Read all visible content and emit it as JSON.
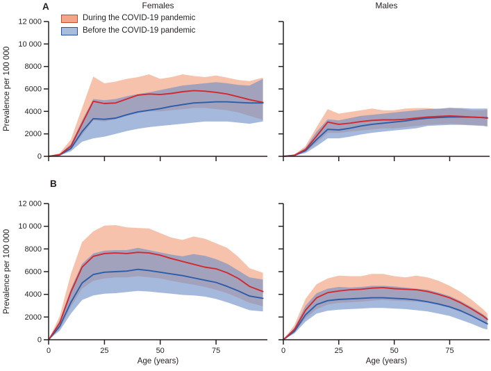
{
  "figure": {
    "panel_a_label": "A",
    "panel_b_label": "B",
    "col_titles": [
      "Females",
      "Males"
    ],
    "y_axis_title": "Prevalence per 100 000",
    "x_axis_title": "Age (years)",
    "legend": [
      {
        "label": "During the COVID-19 pandemic",
        "fill": "#f2a589",
        "border": "#bf4b2e"
      },
      {
        "label": "Before the COVID-19 pandemic",
        "fill": "#a8bcdc",
        "border": "#2c4f9e"
      }
    ]
  },
  "chart_data": {
    "type": "line",
    "title": "",
    "xlabel": "Age (years)",
    "ylabel": "Prevalence per 100 000",
    "ylim": [
      0,
      12000
    ],
    "y_ticks": [
      0,
      2000,
      4000,
      6000,
      8000,
      10000,
      12000
    ],
    "y_tick_labels": [
      "0",
      "2000",
      "4000",
      "6000",
      "8000",
      "10 000",
      "12 000"
    ],
    "x_ticks": [
      0,
      25,
      50,
      75
    ],
    "x_tick_labels": [
      "0",
      "25",
      "50",
      "75"
    ],
    "grid": false,
    "legend_position": "top-left inside panel A Females",
    "colors": {
      "during_line": "#d2292e",
      "during_fill": "#ef8f66",
      "before_line": "#2b5da9",
      "before_fill": "#6e8ec6"
    },
    "panels": [
      {
        "id": "a-females",
        "panel": "A",
        "group": "Females",
        "xmax": 98,
        "ages": [
          0,
          5,
          10,
          15,
          20,
          25,
          30,
          35,
          40,
          45,
          50,
          55,
          60,
          65,
          70,
          75,
          80,
          85,
          90,
          96
        ],
        "series": [
          {
            "name": "During the COVID-19 pandemic",
            "mean": [
              0,
              150,
              900,
              2900,
              4900,
              4700,
              4750,
              5100,
              5450,
              5550,
              5500,
              5600,
              5750,
              5850,
              5800,
              5700,
              5550,
              5300,
              5050,
              4800
            ],
            "upper": [
              0,
              300,
              1500,
              4300,
              7100,
              6500,
              6650,
              6900,
              7050,
              7300,
              6900,
              7050,
              7300,
              7150,
              7050,
              7200,
              7000,
              6800,
              6700,
              7000
            ],
            "lower": [
              0,
              100,
              600,
              1900,
              3200,
              3100,
              3300,
              3600,
              3850,
              4000,
              4000,
              4100,
              4200,
              4300,
              4300,
              4200,
              4100,
              3900,
              3600,
              3250
            ]
          },
          {
            "name": "Before the COVID-19 pandemic",
            "mean": [
              0,
              120,
              700,
              2200,
              3350,
              3300,
              3400,
              3700,
              3950,
              4100,
              4250,
              4450,
              4600,
              4750,
              4800,
              4850,
              4850,
              4800,
              4750,
              4750
            ],
            "upper": [
              0,
              200,
              1100,
              3200,
              5100,
              5000,
              5100,
              5350,
              5550,
              5700,
              5900,
              6100,
              6300,
              6400,
              6500,
              6600,
              6500,
              6350,
              6300,
              6900
            ],
            "lower": [
              0,
              80,
              450,
              1300,
              1600,
              1750,
              2000,
              2250,
              2450,
              2600,
              2700,
              2800,
              2900,
              3000,
              3100,
              3100,
              3100,
              3000,
              2900,
              3100
            ]
          }
        ]
      },
      {
        "id": "a-males",
        "panel": "A",
        "group": "Males",
        "xmax": 93,
        "ages": [
          0,
          5,
          10,
          15,
          20,
          25,
          30,
          35,
          40,
          45,
          50,
          55,
          60,
          65,
          70,
          75,
          80,
          85,
          90,
          92
        ],
        "series": [
          {
            "name": "During the COVID-19 pandemic",
            "mean": [
              0,
              100,
              600,
              1800,
              3050,
              2850,
              2950,
              3100,
              3200,
              3250,
              3250,
              3300,
              3400,
              3500,
              3550,
              3600,
              3550,
              3500,
              3450,
              3400
            ],
            "upper": [
              0,
              180,
              900,
              2600,
              4200,
              3800,
              3950,
              4100,
              4250,
              4100,
              4100,
              4250,
              4300,
              4300,
              4200,
              4350,
              4250,
              4100,
              4100,
              4150
            ],
            "lower": [
              0,
              60,
              400,
              1200,
              2100,
              2100,
              2200,
              2300,
              2400,
              2500,
              2500,
              2600,
              2700,
              2800,
              2850,
              2900,
              2850,
              2800,
              2750,
              2700
            ]
          },
          {
            "name": "Before the COVID-19 pandemic",
            "mean": [
              0,
              80,
              500,
              1500,
              2400,
              2350,
              2500,
              2700,
              2850,
              2950,
              3050,
              3150,
              3300,
              3400,
              3450,
              3500,
              3500,
              3480,
              3450,
              3430
            ],
            "upper": [
              0,
              140,
              750,
              2200,
              3300,
              3200,
              3400,
              3600,
              3700,
              3800,
              3900,
              4000,
              4100,
              4200,
              4250,
              4300,
              4300,
              4250,
              4250,
              4250
            ],
            "lower": [
              0,
              50,
              300,
              900,
              1600,
              1600,
              1750,
              1950,
              2100,
              2200,
              2300,
              2400,
              2500,
              2700,
              2750,
              2800,
              2800,
              2750,
              2700,
              2650
            ]
          }
        ]
      },
      {
        "id": "b-females",
        "panel": "B",
        "group": "Females",
        "xmax": 98,
        "ages": [
          0,
          5,
          10,
          15,
          20,
          25,
          30,
          35,
          40,
          45,
          50,
          55,
          60,
          65,
          70,
          75,
          80,
          85,
          90,
          96
        ],
        "series": [
          {
            "name": "During the COVID-19 pandemic",
            "mean": [
              0,
              1500,
              4200,
              6400,
              7350,
              7600,
              7650,
              7600,
              7700,
              7650,
              7450,
              7150,
              6900,
              6650,
              6400,
              6250,
              5900,
              5400,
              4700,
              4250
            ],
            "upper": [
              0,
              2100,
              5800,
              8600,
              9550,
              10050,
              10100,
              9900,
              9850,
              9800,
              9400,
              9000,
              8800,
              9100,
              8900,
              8500,
              8100,
              7300,
              6300,
              5900
            ],
            "lower": [
              0,
              1000,
              2900,
              4500,
              5200,
              5400,
              5500,
              5500,
              5600,
              5500,
              5400,
              5200,
              5000,
              4850,
              4650,
              4400,
              4100,
              3700,
              3250,
              2950
            ]
          },
          {
            "name": "Before the COVID-19 pandemic",
            "mean": [
              0,
              1200,
              3300,
              5000,
              5750,
              5950,
              6000,
              6050,
              6200,
              6100,
              5950,
              5800,
              5650,
              5450,
              5250,
              5050,
              4700,
              4300,
              3850,
              3650
            ],
            "upper": [
              0,
              1700,
              4500,
              6700,
              7600,
              7850,
              7900,
              7900,
              8100,
              7900,
              7700,
              7500,
              7350,
              7550,
              7400,
              7100,
              6700,
              6100,
              5500,
              5300
            ],
            "lower": [
              0,
              800,
              2300,
              3500,
              3900,
              4050,
              4100,
              4200,
              4300,
              4250,
              4150,
              4050,
              3950,
              3900,
              3800,
              3600,
              3300,
              2950,
              2600,
              2500
            ]
          }
        ]
      },
      {
        "id": "b-males",
        "panel": "B",
        "group": "Males",
        "xmax": 93,
        "ages": [
          0,
          5,
          10,
          15,
          20,
          25,
          30,
          35,
          40,
          45,
          50,
          55,
          60,
          65,
          70,
          75,
          80,
          85,
          90,
          92
        ],
        "series": [
          {
            "name": "During the COVID-19 pandemic",
            "mean": [
              0,
              900,
              2600,
              3700,
              4150,
              4300,
              4400,
              4450,
              4550,
              4600,
              4500,
              4450,
              4400,
              4250,
              4000,
              3700,
              3250,
              2700,
              2100,
              1800
            ],
            "upper": [
              0,
              1300,
              3600,
              4900,
              5400,
              5650,
              5600,
              5600,
              5800,
              5800,
              5600,
              5500,
              5650,
              5500,
              5200,
              4750,
              4200,
              3500,
              2700,
              2300
            ],
            "lower": [
              0,
              650,
              1900,
              2700,
              3100,
              3250,
              3300,
              3350,
              3450,
              3500,
              3450,
              3400,
              3350,
              3250,
              3050,
              2800,
              2450,
              2050,
              1550,
              1350
            ]
          },
          {
            "name": "Before the COVID-19 pandemic",
            "mean": [
              0,
              750,
              2200,
              3100,
              3450,
              3550,
              3600,
              3650,
              3700,
              3700,
              3650,
              3600,
              3500,
              3350,
              3150,
              2900,
              2550,
              2100,
              1600,
              1400
            ],
            "upper": [
              0,
              1050,
              3000,
              4100,
              4500,
              4650,
              4600,
              4650,
              4750,
              4750,
              4700,
              4600,
              4500,
              4400,
              4150,
              3850,
              3400,
              2850,
              2250,
              1950
            ],
            "lower": [
              0,
              550,
              1600,
              2300,
              2550,
              2650,
              2700,
              2750,
              2800,
              2800,
              2750,
              2700,
              2600,
              2500,
              2300,
              2100,
              1750,
              1400,
              1000,
              900
            ]
          }
        ]
      }
    ]
  }
}
